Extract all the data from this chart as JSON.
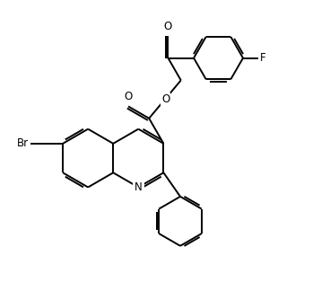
{
  "background_color": "#ffffff",
  "line_color": "#000000",
  "line_width": 1.4,
  "font_size": 8.5,
  "figsize": [
    3.68,
    3.14
  ],
  "dpi": 100,
  "xlim": [
    -1.0,
    8.5
  ],
  "ylim": [
    -0.5,
    7.5
  ]
}
